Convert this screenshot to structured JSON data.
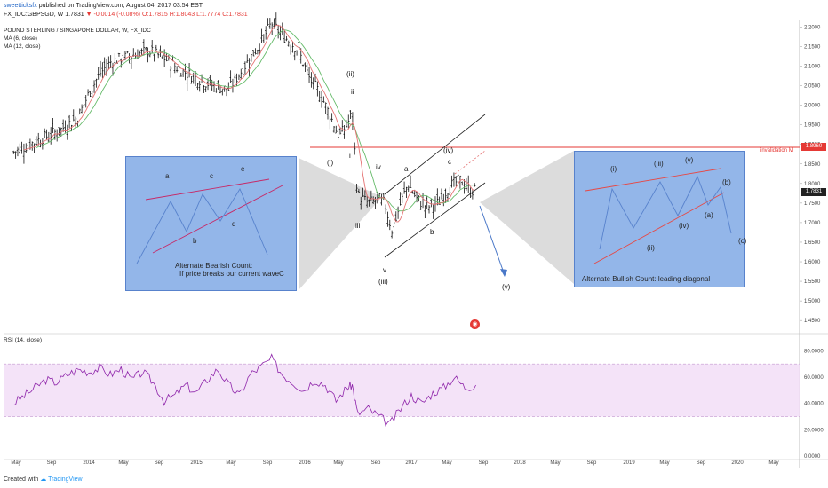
{
  "header": {
    "publisher": "sweetticksfx",
    "published_text": "published on TradingView.com, August 04, 2017 03:54 EST",
    "symbol_line": "FX_IDC:GBPSGD, W 1.7831",
    "change": "▼ -0.0014 (-0.08%)",
    "ohlc": "O:1.7815 H:1.8043 L:1.7774 C:1.7831",
    "title": "POUND STERLING / SINGAPORE DOLLAR, W, FX_IDC",
    "ma6": "MA (6, close)",
    "ma12": "MA (12, close)",
    "rsi": "RSI (14, close)"
  },
  "footer": {
    "created_with": "Created with",
    "brand": "TradingView"
  },
  "colors": {
    "invalidation": "#e53935",
    "box_fill": "#8ab0e8",
    "ma6": "#e57373",
    "ma12": "#66bb6a",
    "rsi_line": "#8e24aa",
    "rsi_band": "#f1dcf6"
  },
  "invalidation": {
    "level": "1.8960",
    "label": "invalidation lvl"
  },
  "last_price": "1.7831",
  "chart_data": {
    "type": "line",
    "subtype": "ohlc-weekly",
    "ylim": [
      1.43,
      2.21
    ],
    "y_ticks": [
      "2.2000",
      "2.1500",
      "2.1000",
      "2.0500",
      "2.0000",
      "1.9500",
      "1.9000",
      "1.8500",
      "1.8000",
      "1.7500",
      "1.7000",
      "1.6500",
      "1.6000",
      "1.5500",
      "1.5000",
      "1.4500"
    ],
    "x_ticks": [
      "May",
      "Sep",
      "2014",
      "May",
      "Sep",
      "2015",
      "May",
      "Sep",
      "2016",
      "May",
      "Sep",
      "2017",
      "May",
      "Sep",
      "2018",
      "May",
      "Sep",
      "2019",
      "May",
      "Sep",
      "2020",
      "May"
    ],
    "close_path": [
      [
        2013.3,
        1.88
      ],
      [
        2013.45,
        1.9
      ],
      [
        2013.6,
        1.92
      ],
      [
        2013.75,
        1.94
      ],
      [
        2013.9,
        1.97
      ],
      [
        2014.0,
        2.03
      ],
      [
        2014.1,
        2.08
      ],
      [
        2014.2,
        2.11
      ],
      [
        2014.3,
        2.12
      ],
      [
        2014.45,
        2.13
      ],
      [
        2014.55,
        2.14
      ],
      [
        2014.7,
        2.12
      ],
      [
        2014.85,
        2.09
      ],
      [
        2015.0,
        2.07
      ],
      [
        2015.15,
        2.05
      ],
      [
        2015.3,
        2.04
      ],
      [
        2015.45,
        2.1
      ],
      [
        2015.6,
        2.16
      ],
      [
        2015.7,
        2.21
      ],
      [
        2015.8,
        2.18
      ],
      [
        2015.95,
        2.14
      ],
      [
        2016.05,
        2.07
      ],
      [
        2016.15,
        2.03
      ],
      [
        2016.25,
        1.97
      ],
      [
        2016.33,
        1.92
      ],
      [
        2016.4,
        1.95
      ],
      [
        2016.45,
        1.98
      ],
      [
        2016.5,
        1.77
      ],
      [
        2016.6,
        1.75
      ],
      [
        2016.7,
        1.76
      ],
      [
        2016.75,
        1.75
      ],
      [
        2016.82,
        1.68
      ],
      [
        2016.9,
        1.75
      ],
      [
        2016.97,
        1.8
      ],
      [
        2017.05,
        1.76
      ],
      [
        2017.15,
        1.74
      ],
      [
        2017.25,
        1.75
      ],
      [
        2017.35,
        1.79
      ],
      [
        2017.45,
        1.81
      ],
      [
        2017.55,
        1.78
      ],
      [
        2017.6,
        1.7831
      ]
    ],
    "rsi": {
      "ylim": [
        0,
        85
      ],
      "y_ticks": [
        "80.0000",
        "60.0000",
        "40.0000",
        "20.0000",
        "0.0000"
      ],
      "bands": [
        30,
        70
      ],
      "values": [
        [
          2013.3,
          40
        ],
        [
          2013.4,
          46
        ],
        [
          2013.5,
          52
        ],
        [
          2013.6,
          58
        ],
        [
          2013.7,
          56
        ],
        [
          2013.8,
          62
        ],
        [
          2013.9,
          66
        ],
        [
          2014.0,
          64
        ],
        [
          2014.1,
          67
        ],
        [
          2014.2,
          62
        ],
        [
          2014.3,
          66
        ],
        [
          2014.4,
          58
        ],
        [
          2014.5,
          64
        ],
        [
          2014.6,
          56
        ],
        [
          2014.7,
          42
        ],
        [
          2014.8,
          46
        ],
        [
          2014.9,
          54
        ],
        [
          2015.0,
          48
        ],
        [
          2015.1,
          58
        ],
        [
          2015.2,
          66
        ],
        [
          2015.3,
          54
        ],
        [
          2015.4,
          46
        ],
        [
          2015.5,
          62
        ],
        [
          2015.6,
          68
        ],
        [
          2015.7,
          74
        ],
        [
          2015.8,
          62
        ],
        [
          2015.9,
          56
        ],
        [
          2016.0,
          50
        ],
        [
          2016.1,
          58
        ],
        [
          2016.2,
          54
        ],
        [
          2016.3,
          42
        ],
        [
          2016.4,
          52
        ],
        [
          2016.45,
          54
        ],
        [
          2016.5,
          32
        ],
        [
          2016.6,
          36
        ],
        [
          2016.7,
          30
        ],
        [
          2016.8,
          24
        ],
        [
          2016.9,
          36
        ],
        [
          2017.0,
          46
        ],
        [
          2017.1,
          40
        ],
        [
          2017.2,
          48
        ],
        [
          2017.3,
          52
        ],
        [
          2017.4,
          60
        ],
        [
          2017.5,
          52
        ],
        [
          2017.6,
          54
        ]
      ]
    },
    "wave_labels": [
      "(i)",
      "(ii)",
      "ii",
      "i",
      "iv",
      "iii",
      "v",
      "(iii)",
      "a",
      "b",
      "c",
      "(iv)",
      "(v)"
    ],
    "annotations": {
      "bearish_box": {
        "title": "Alternate Bearish Count:",
        "subtitle": "If price breaks our current waveC",
        "labels": [
          "a",
          "b",
          "c",
          "d",
          "e"
        ]
      },
      "bullish_box": {
        "title": "Alternate Bullish Count: leading diagonal",
        "labels": [
          "(i)",
          "(ii)",
          "(iii)",
          "(iv)",
          "(v)",
          "(a)",
          "(b)",
          "(c)"
        ]
      }
    }
  }
}
